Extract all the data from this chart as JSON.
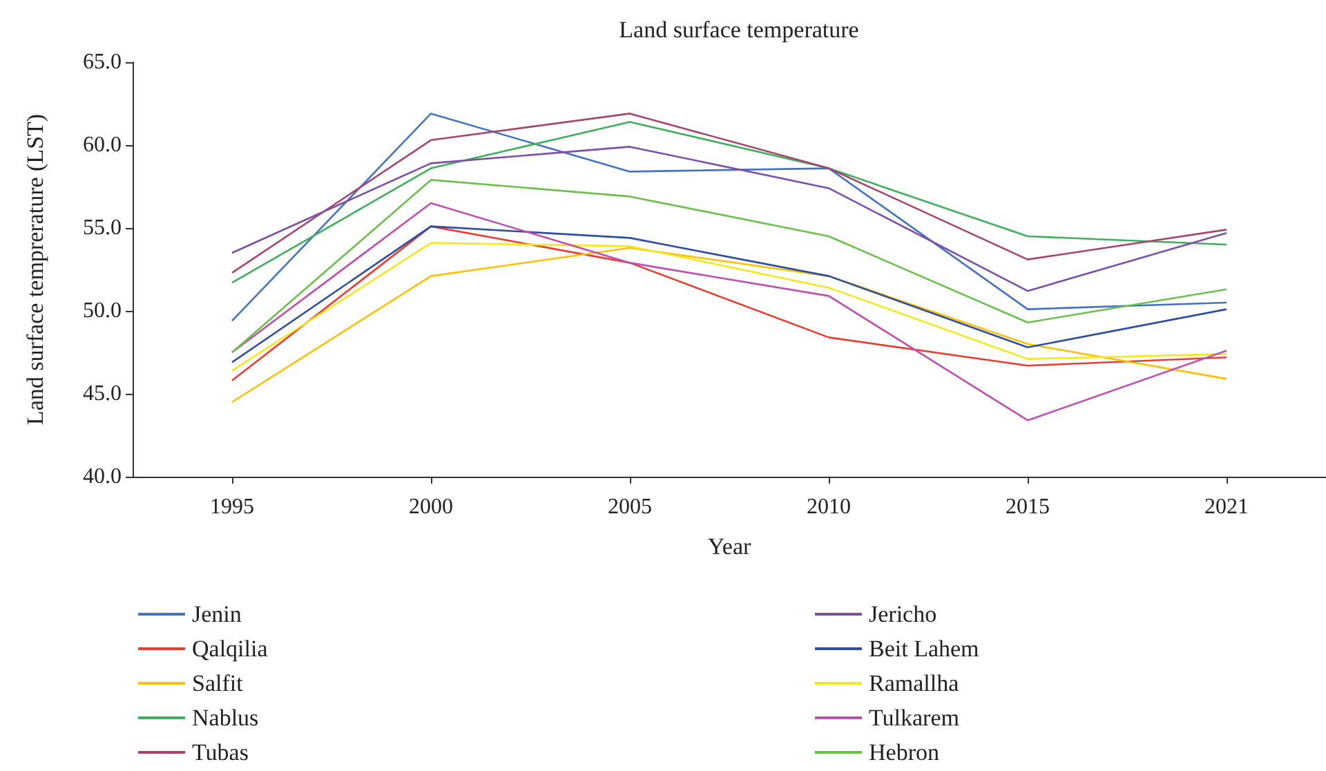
{
  "chart_data": {
    "type": "line",
    "title": "Land surface temperature",
    "xlabel": "Year",
    "ylabel": "Land surface temprerature (LST)",
    "categories": [
      "1995",
      "2000",
      "2005",
      "2010",
      "2015",
      "2021"
    ],
    "ylim": [
      40,
      65
    ],
    "yticks": [
      {
        "value": 40,
        "label": "40.0"
      },
      {
        "value": 45,
        "label": "45.0"
      },
      {
        "value": 50,
        "label": "50.0"
      },
      {
        "value": 55,
        "label": "55.0"
      },
      {
        "value": 60,
        "label": "60.0"
      },
      {
        "value": 65,
        "label": "65.0"
      }
    ],
    "grid": false,
    "legend": "bottom",
    "marker": "none",
    "line_style": "solid",
    "series": [
      {
        "name": "Jenin",
        "color": "#4472c4",
        "values": [
          49.4,
          61.9,
          58.4,
          58.6,
          50.1,
          50.5
        ]
      },
      {
        "name": "Qalqilia",
        "color": "#ee3b2f",
        "values": [
          45.8,
          55.1,
          52.9,
          48.4,
          46.7,
          47.2
        ]
      },
      {
        "name": "Salfit",
        "color": "#ffc000",
        "values": [
          44.5,
          52.1,
          53.8,
          52.1,
          48.0,
          45.9
        ]
      },
      {
        "name": "Nablus",
        "color": "#3cb05a",
        "values": [
          51.7,
          58.6,
          61.4,
          58.6,
          54.5,
          54.0
        ]
      },
      {
        "name": "Tubas",
        "color": "#a8456e",
        "values": [
          52.3,
          60.3,
          61.9,
          58.6,
          53.1,
          54.9
        ]
      },
      {
        "name": "Jericho",
        "color": "#7e4fa8",
        "values": [
          53.5,
          58.9,
          59.9,
          57.4,
          51.2,
          54.7
        ]
      },
      {
        "name": "Beit Lahem",
        "color": "#2e4ea3",
        "values": [
          46.9,
          55.1,
          54.4,
          52.1,
          47.8,
          50.1
        ]
      },
      {
        "name": "Ramallha",
        "color": "#f5e81a",
        "values": [
          46.4,
          54.1,
          53.9,
          51.4,
          47.1,
          47.4
        ]
      },
      {
        "name": "Tulkarem",
        "color": "#c04fb0",
        "values": [
          47.5,
          56.5,
          52.9,
          50.9,
          43.4,
          47.6
        ]
      },
      {
        "name": "Hebron",
        "color": "#6cc04a",
        "values": [
          47.5,
          57.9,
          56.9,
          54.5,
          49.3,
          51.3
        ]
      }
    ]
  }
}
